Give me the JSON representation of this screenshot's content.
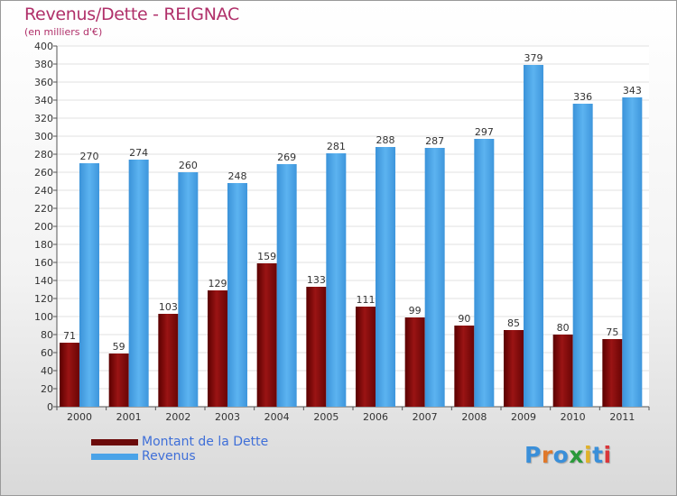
{
  "title": "Revenus/Dette - REIGNAC",
  "subtitle": "(en milliers d'€)",
  "colors": {
    "dette": "#7b0a0a",
    "revenus": "#4a9fe0",
    "title": "#b0306a",
    "legend_text": "#3f6fd8"
  },
  "legend": [
    {
      "label": "Montant de la Dette",
      "color": "#6b0a0a"
    },
    {
      "label": "Revenus",
      "color": "#4aa3e8"
    }
  ],
  "logo": {
    "text": "Proxiti",
    "letters": [
      "P",
      "r",
      "o",
      "x",
      "i",
      "t",
      "i"
    ],
    "letter_colors": [
      "#3a8fd9",
      "#e0782a",
      "#3a8fd9",
      "#2a9a3a",
      "#e0b22a",
      "#3a8fd9",
      "#d9363a"
    ]
  },
  "chart_data": {
    "type": "bar",
    "title": "Revenus/Dette - REIGNAC",
    "subtitle": "(en milliers d'€)",
    "categories": [
      "2000",
      "2001",
      "2002",
      "2003",
      "2004",
      "2005",
      "2006",
      "2007",
      "2008",
      "2009",
      "2010",
      "2011"
    ],
    "series": [
      {
        "name": "Montant de la Dette",
        "values": [
          71,
          59,
          103,
          129,
          159,
          133,
          111,
          99,
          90,
          85,
          80,
          75
        ]
      },
      {
        "name": "Revenus",
        "values": [
          270,
          274,
          260,
          248,
          269,
          281,
          288,
          287,
          297,
          379,
          336,
          343
        ]
      }
    ],
    "ylim": [
      0,
      400
    ],
    "ytick_step": 20,
    "grid": true,
    "legend_position": "bottom-left"
  }
}
